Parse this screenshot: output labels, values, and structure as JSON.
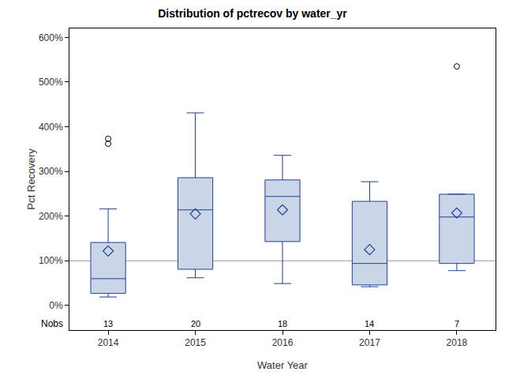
{
  "chart_data": {
    "type": "box",
    "title": "Distribution of pctrecov by water_yr",
    "x_label": "Water Year",
    "y_label": "Pct Recovery",
    "categories": [
      "2014",
      "2015",
      "2016",
      "2017",
      "2018"
    ],
    "lower_whisker": [
      19,
      62,
      49,
      42,
      78
    ],
    "q1": [
      27,
      81,
      143,
      46,
      94
    ],
    "median": [
      60,
      214,
      244,
      94,
      198
    ],
    "q3": [
      141,
      286,
      281,
      233,
      249
    ],
    "upper_whisker": [
      216,
      431,
      336,
      277,
      249
    ],
    "mean": [
      122,
      205,
      214,
      125,
      207
    ],
    "outliers": [
      [
        373,
        362
      ],
      [],
      [],
      [],
      [
        535
      ]
    ],
    "nobs_label": "Nobs",
    "nobs": [
      13,
      20,
      18,
      14,
      7
    ],
    "reference_line": 100,
    "color": "#cbd5e8",
    "ylim": [
      -55,
      620
    ],
    "yticks": [
      {
        "value": 0,
        "label": "0%"
      },
      {
        "value": 100,
        "label": "100%"
      },
      {
        "value": 200,
        "label": "200%"
      },
      {
        "value": 300,
        "label": "300%"
      },
      {
        "value": 400,
        "label": "400%"
      },
      {
        "value": 500,
        "label": "500%"
      },
      {
        "value": 600,
        "label": "600%"
      }
    ],
    "grid": false
  }
}
